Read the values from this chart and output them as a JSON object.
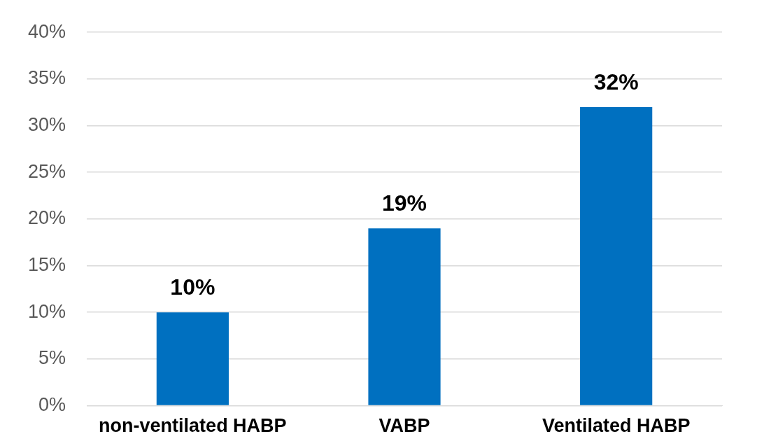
{
  "chart_data": {
    "type": "bar",
    "categories": [
      "non-ventilated HABP",
      "VABP",
      "Ventilated HABP"
    ],
    "values": [
      10,
      19,
      32
    ],
    "color": "#0070c0",
    "value_labels": [
      "10%",
      "19%",
      "32%"
    ],
    "ylim": [
      0,
      40
    ],
    "yticks": [
      {
        "value": 0,
        "label": "0%"
      },
      {
        "value": 5,
        "label": "5%"
      },
      {
        "value": 10,
        "label": "10%"
      },
      {
        "value": 15,
        "label": "15%"
      },
      {
        "value": 20,
        "label": "20%"
      },
      {
        "value": 25,
        "label": "25%"
      },
      {
        "value": 30,
        "label": "30%"
      },
      {
        "value": 35,
        "label": "35%"
      },
      {
        "value": 40,
        "label": "40%"
      }
    ],
    "grid": "y",
    "legend": false
  }
}
